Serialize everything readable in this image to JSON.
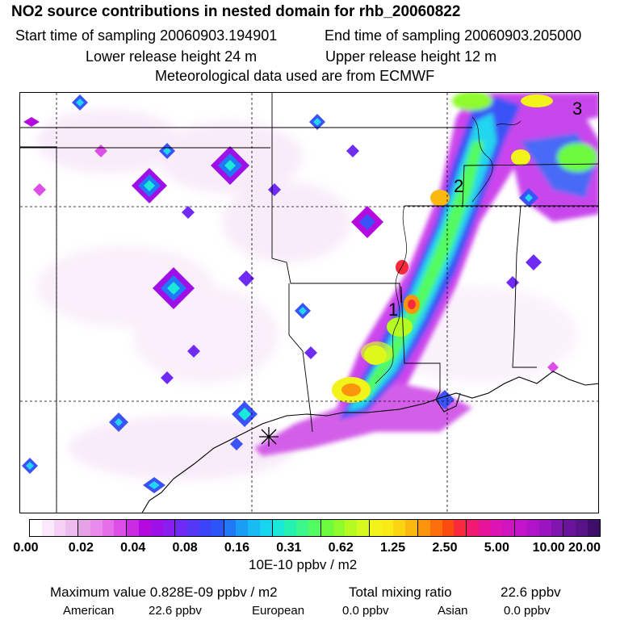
{
  "header": {
    "title": "NO2 source contributions in nested domain for rhb_20060822",
    "start_time": "Start time of sampling 20060903.194901",
    "end_time": "End time of sampling 20060903.205000",
    "lower_release": "Lower release height   24 m",
    "upper_release": "Upper release height   12 m",
    "met_data": "Meteorological data used are from ECMWF"
  },
  "map": {
    "markers": [
      {
        "label": "1"
      },
      {
        "label": "2"
      },
      {
        "label": "3"
      }
    ],
    "source_symbol": "star-marker"
  },
  "legend": {
    "ticks": [
      "0.00",
      "0.02",
      "0.04",
      "0.08",
      "0.16",
      "0.31",
      "0.62",
      "1.25",
      "2.50",
      "5.00",
      "10.00",
      "20.00"
    ],
    "units": "10E-10 ppbv / m2",
    "colors": [
      "#ffffff",
      "#fbe9fb",
      "#f5d2f5",
      "#eebcee",
      "#e6a2e6",
      "#e98aed",
      "#e46fe8",
      "#dd4ee6",
      "#c92ce3",
      "#b40ae0",
      "#9f10e8",
      "#8a1ef0",
      "#6f2af3",
      "#5538f6",
      "#3c44f8",
      "#2a56f7",
      "#2078f6",
      "#1b9cf5",
      "#18bcf3",
      "#16d6ef",
      "#1ae8d8",
      "#25f2b0",
      "#3cf88a",
      "#52fb5f",
      "#6cfb3d",
      "#8ffb2a",
      "#b5fb22",
      "#d7fa1e",
      "#f1f31a",
      "#faea16",
      "#fbd412",
      "#fbb80e",
      "#fb960c",
      "#fb700c",
      "#fb4c10",
      "#f82a3c",
      "#f01a70",
      "#e6149a",
      "#dd14b4",
      "#d014c0",
      "#c214c8",
      "#b014c8",
      "#9a14c0",
      "#8214b0",
      "#6a149c",
      "#561488",
      "#3e0e68"
    ]
  },
  "stats": {
    "max_value": "Maximum value  0.828E-09 ppbv / m2",
    "total_mixing": "Total mixing ratio",
    "total_value": "22.6 ppbv",
    "american_label": "American",
    "american_value": "22.6 ppbv",
    "european_label": "European",
    "european_value": "0.0 ppbv",
    "asian_label": "Asian",
    "asian_value": "0.0 ppbv"
  }
}
